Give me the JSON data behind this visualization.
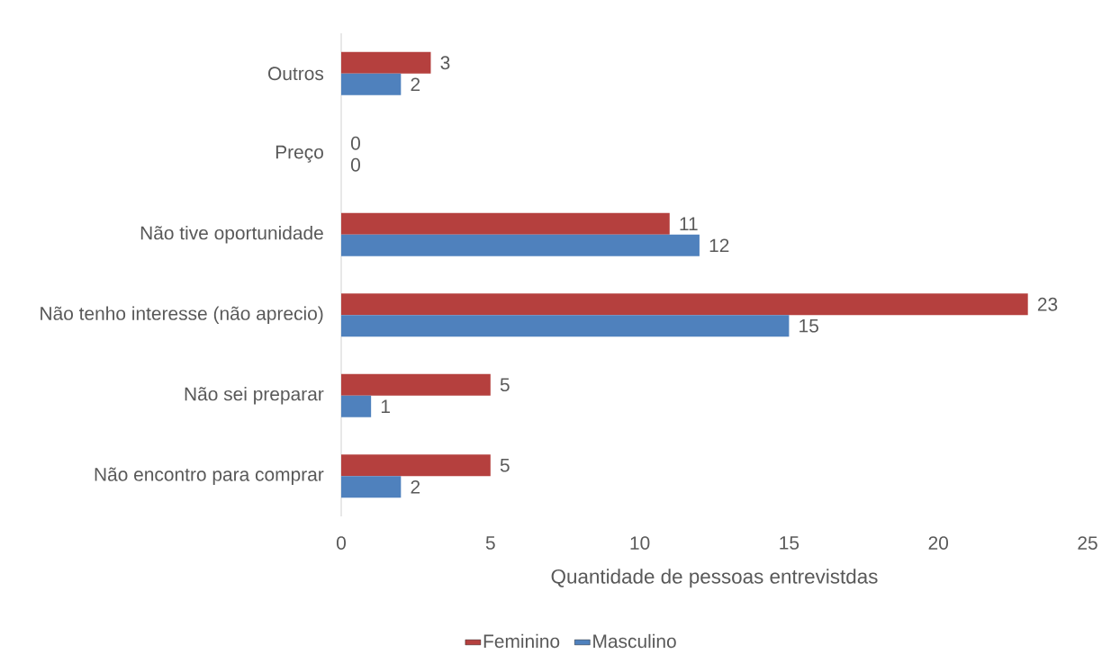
{
  "chart_data": {
    "type": "bar",
    "orientation": "horizontal",
    "xlabel": "Quantidade de pessoas entrevistdas",
    "categories": [
      "Outros",
      "Preço",
      "Não tive oportunidade",
      "Não tenho interesse (não aprecio)",
      "Não sei preparar",
      "Não encontro para comprar"
    ],
    "series": [
      {
        "name": "Feminino",
        "color": "#b5403e",
        "values": [
          3,
          0,
          11,
          23,
          5,
          5
        ]
      },
      {
        "name": "Masculino",
        "color": "#4f81bd",
        "values": [
          2,
          0,
          12,
          15,
          1,
          2
        ]
      }
    ],
    "xlim": [
      0,
      25
    ],
    "xticks": [
      0,
      5,
      10,
      15,
      20,
      25
    ],
    "data_labels": true,
    "legend": "bottom",
    "grid": false
  }
}
